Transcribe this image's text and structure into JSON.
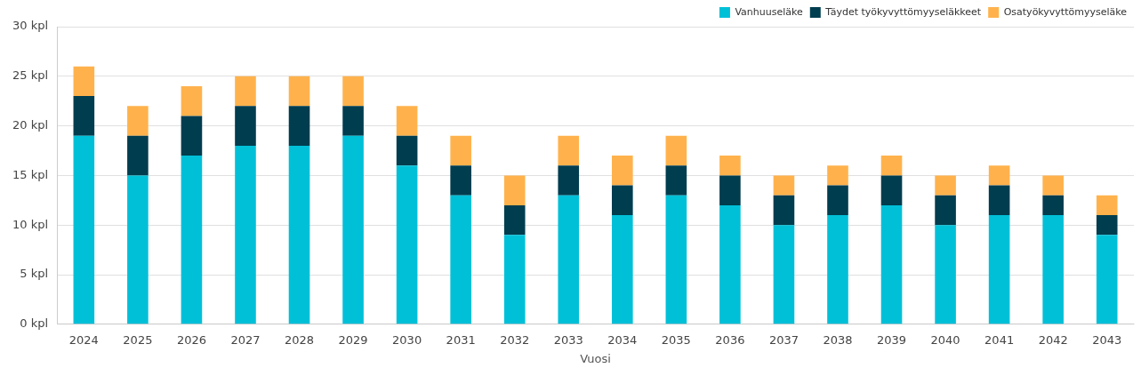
{
  "chart_data": {
    "type": "bar",
    "stacked": true,
    "xlabel": "Vuosi",
    "categories": [
      "2024",
      "2025",
      "2026",
      "2027",
      "2028",
      "2029",
      "2030",
      "2031",
      "2032",
      "2033",
      "2034",
      "2035",
      "2036",
      "2037",
      "2038",
      "2039",
      "2040",
      "2041",
      "2042",
      "2043"
    ],
    "series": [
      {
        "name": "Vanhuuseläke",
        "color": "#00c0d8",
        "values": [
          19,
          15,
          17,
          18,
          18,
          19,
          16,
          13,
          9,
          13,
          11,
          13,
          12,
          10,
          11,
          12,
          10,
          11,
          11,
          9
        ]
      },
      {
        "name": "Täydet työkyvyttömyyseläkkeet",
        "color": "#003d4f",
        "values": [
          4,
          4,
          4,
          4,
          4,
          3,
          3,
          3,
          3,
          3,
          3,
          3,
          3,
          3,
          3,
          3,
          3,
          3,
          2,
          2
        ]
      },
      {
        "name": "Osatyökyvyttömyyseläke",
        "color": "#ffb24c",
        "values": [
          3,
          3,
          3,
          3,
          3,
          3,
          3,
          3,
          3,
          3,
          3,
          3,
          2,
          2,
          2,
          2,
          2,
          2,
          2,
          2
        ]
      }
    ],
    "ylim": [
      0,
      30
    ],
    "yticks": [
      {
        "value": 0,
        "label": "0 kpl"
      },
      {
        "value": 5,
        "label": "5 kpl"
      },
      {
        "value": 10,
        "label": "10 kpl"
      },
      {
        "value": 15,
        "label": "15 kpl"
      },
      {
        "value": 20,
        "label": "20 kpl"
      },
      {
        "value": 25,
        "label": "25 kpl"
      },
      {
        "value": 30,
        "label": "30 kpl"
      }
    ],
    "grid": "y",
    "legend": "top right"
  }
}
